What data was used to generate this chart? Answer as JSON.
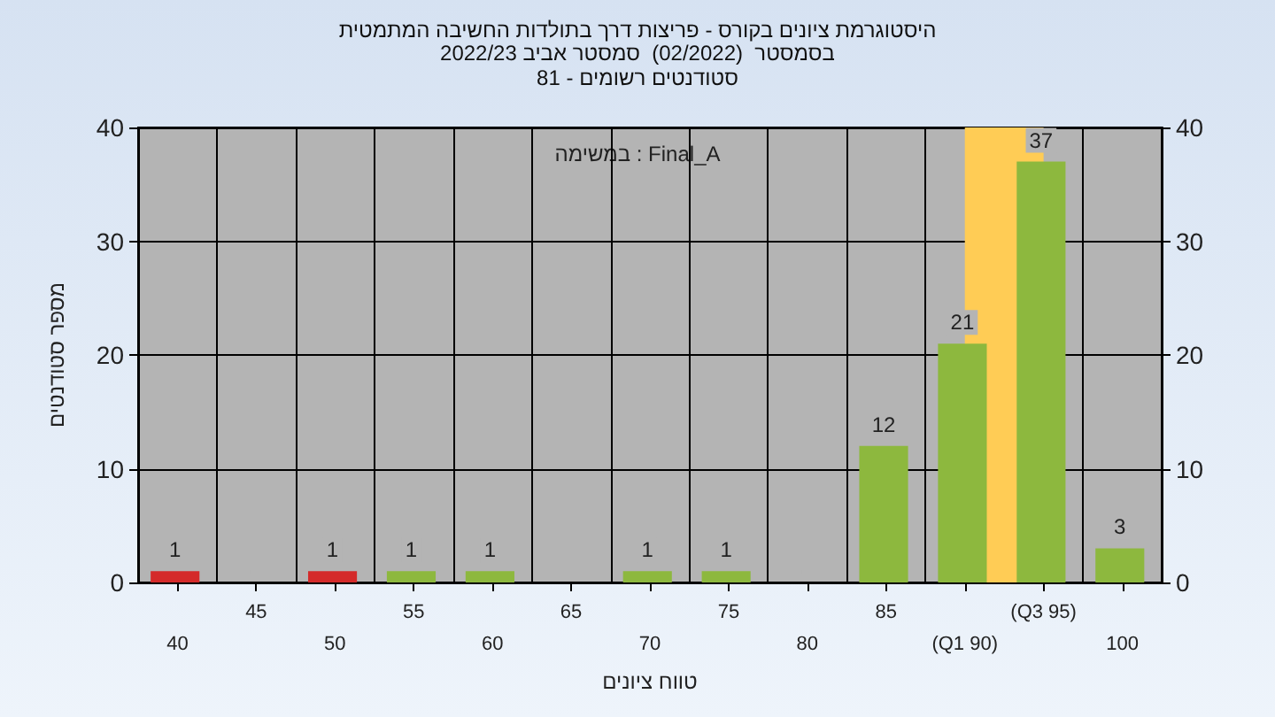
{
  "chart_data": {
    "type": "bar",
    "title": "היסטוגרמת ציונים בקורס - פריצות דרך בתולדות החשיבה המתמטית",
    "subtitle": "בסמסטר  (02/2022)  סמסטר אביב 2022/23\nסטודנטים רשומים - 81",
    "xlabel": "טווח ציונים",
    "ylabel": "מספר סטודנטים",
    "annotations": [
      "במשימה : Final_A"
    ],
    "categories": [
      "40",
      "45",
      "50",
      "55",
      "60",
      "65",
      "70",
      "75",
      "80",
      "85",
      "(Q1 90)",
      "(Q3 95)",
      "100"
    ],
    "values": [
      1,
      0,
      1,
      1,
      1,
      0,
      1,
      1,
      0,
      12,
      21,
      37,
      3
    ],
    "colors": [
      "#d42a2a",
      "#8db83e",
      "#d42a2a",
      "#8db83e",
      "#8db83e",
      "#8db83e",
      "#8db83e",
      "#8db83e",
      "#8db83e",
      "#8db83e",
      "#8db83e",
      "#8db83e",
      "#8db83e"
    ],
    "value_labels": [
      "1",
      null,
      "1",
      "1",
      "1",
      null,
      "1",
      "1",
      null,
      "12",
      "21",
      "37",
      "3"
    ],
    "bands": [
      {
        "axis": "x",
        "from": "(Q1 90)",
        "to": "(Q3 95)",
        "color": "#ffcc55"
      }
    ],
    "ylim": [
      0,
      40
    ],
    "yticks": [
      0,
      10,
      20,
      30,
      40
    ],
    "y2lim": [
      0,
      40
    ],
    "y2ticks": [
      0,
      10,
      20,
      30,
      40
    ],
    "grid": true
  }
}
